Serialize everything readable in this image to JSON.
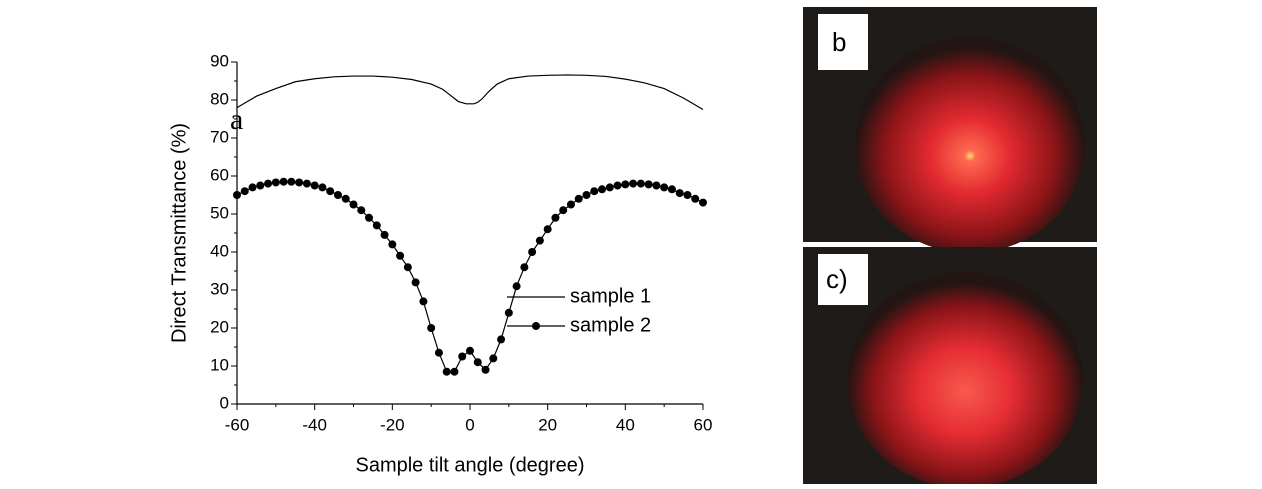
{
  "chart_data": {
    "type": "line",
    "xlabel": "Sample tilt angle (degree)",
    "ylabel": "Direct Transmittance (%)",
    "annotation": "a",
    "panel_labels": [
      "b",
      "c)"
    ],
    "xlim": [
      -60,
      60
    ],
    "xticks": [
      -60,
      -40,
      -20,
      0,
      20,
      40,
      60
    ],
    "ylim": [
      0,
      90
    ],
    "yticks": [
      0,
      10,
      20,
      30,
      40,
      50,
      60,
      70,
      80,
      90
    ],
    "grid": false,
    "series": [
      {
        "name": "sample 1",
        "color": "#000000",
        "marker": false,
        "x": [
          -60,
          -55,
          -50,
          -45,
          -40,
          -35,
          -30,
          -25,
          -20,
          -15,
          -10,
          -7,
          -5,
          -3,
          -1,
          0,
          1,
          2,
          3,
          5,
          7,
          10,
          15,
          20,
          25,
          30,
          35,
          40,
          45,
          50,
          55,
          60
        ],
        "values": [
          78,
          81,
          83,
          84.8,
          85.6,
          86.1,
          86.3,
          86.3,
          86,
          85.4,
          84.2,
          82.8,
          81.2,
          79.6,
          79,
          79,
          79,
          79.4,
          80.2,
          82.4,
          84.2,
          85.6,
          86.3,
          86.5,
          86.6,
          86.5,
          86.2,
          85.5,
          84.5,
          83,
          80.5,
          77.5
        ]
      },
      {
        "name": "sample 2",
        "color": "#000000",
        "marker": true,
        "x": [
          -60,
          -58,
          -56,
          -54,
          -52,
          -50,
          -48,
          -46,
          -44,
          -42,
          -40,
          -38,
          -36,
          -34,
          -32,
          -30,
          -28,
          -26,
          -24,
          -22,
          -20,
          -18,
          -16,
          -14,
          -12,
          -10,
          -8,
          -6,
          -4,
          -2,
          0,
          2,
          4,
          6,
          8,
          10,
          12,
          14,
          16,
          18,
          20,
          22,
          24,
          26,
          28,
          30,
          32,
          34,
          36,
          38,
          40,
          42,
          44,
          46,
          48,
          50,
          52,
          54,
          56,
          58,
          60
        ],
        "values": [
          55,
          56,
          57,
          57.5,
          58,
          58.3,
          58.5,
          58.5,
          58.3,
          58,
          57.5,
          57,
          56,
          55,
          54,
          52.5,
          51,
          49,
          47,
          44.5,
          42,
          39,
          36,
          32,
          27,
          20,
          13.5,
          8.5,
          8.5,
          12.5,
          14,
          11,
          9,
          12,
          17,
          24,
          31,
          36,
          40,
          43,
          46,
          49,
          51,
          52.5,
          54,
          55,
          56,
          56.5,
          57,
          57.5,
          57.8,
          58,
          58,
          57.8,
          57.5,
          57,
          56.5,
          55.5,
          55,
          54,
          53
        ]
      }
    ]
  }
}
